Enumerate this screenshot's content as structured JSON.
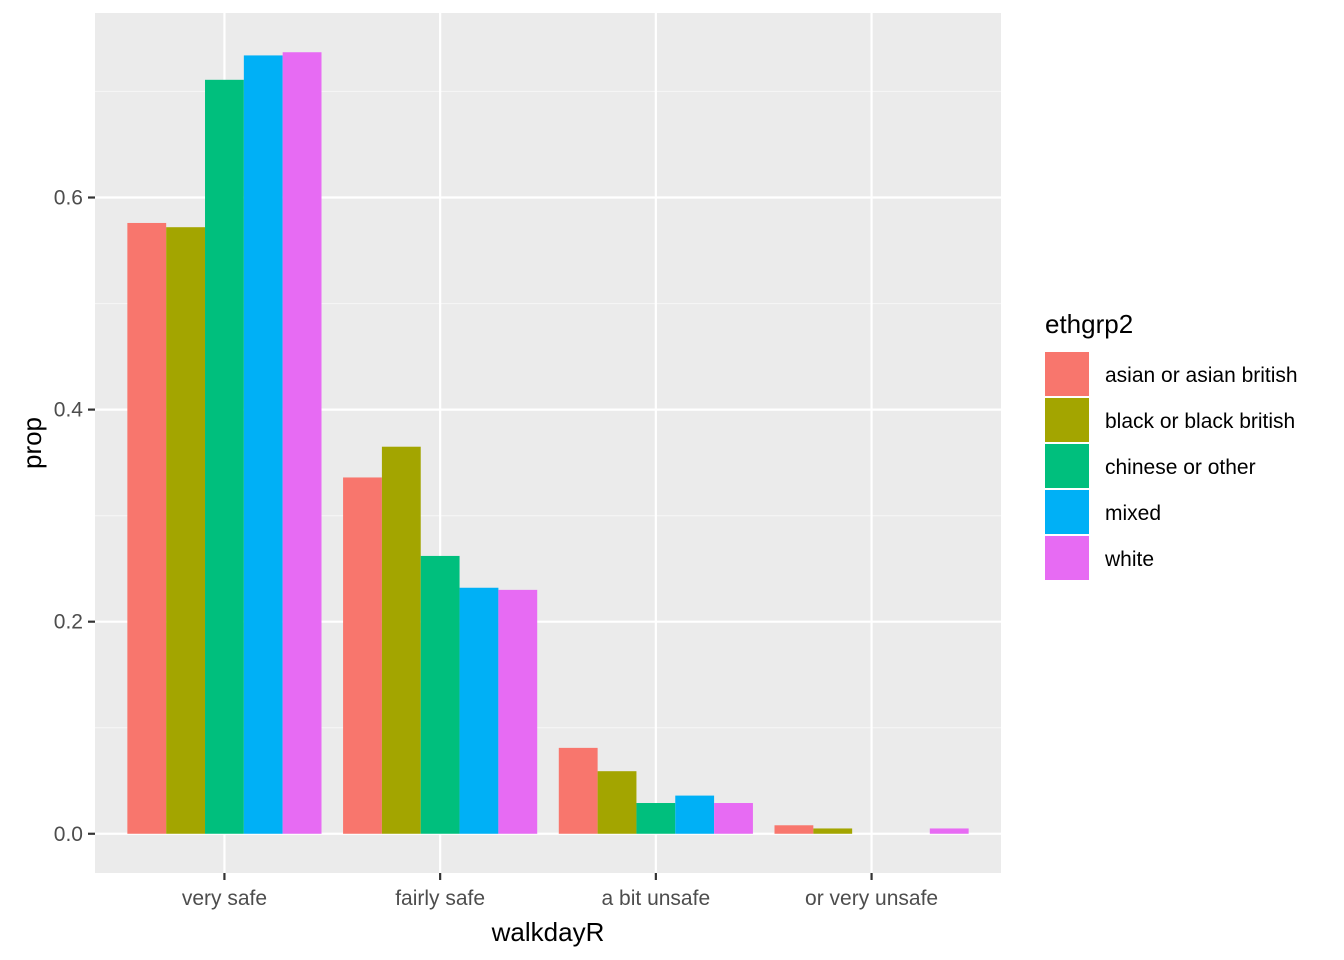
{
  "chart_data": {
    "type": "bar",
    "xlabel": "walkdayR",
    "ylabel": "prop",
    "categories": [
      "very safe",
      "fairly safe",
      "a bit unsafe",
      "or very unsafe"
    ],
    "ylim": [
      -0.037,
      0.774
    ],
    "yticks": [
      0.0,
      0.2,
      0.4,
      0.6
    ],
    "ytick_labels": [
      "0.0",
      "0.2",
      "0.4",
      "0.6"
    ],
    "grid": true,
    "legend": {
      "title": "ethgrp2",
      "position": "right"
    },
    "series": [
      {
        "name": "asian or asian british",
        "color": "#F8766D",
        "values": [
          0.576,
          0.336,
          0.081,
          0.008
        ]
      },
      {
        "name": "black or black british",
        "color": "#A3A500",
        "values": [
          0.572,
          0.365,
          0.059,
          0.005
        ]
      },
      {
        "name": "chinese or other",
        "color": "#00BF7D",
        "values": [
          0.711,
          0.262,
          0.029,
          0.0
        ]
      },
      {
        "name": "mixed",
        "color": "#00B0F6",
        "values": [
          0.734,
          0.232,
          0.036,
          0.0
        ]
      },
      {
        "name": "white",
        "color": "#E76BF3",
        "values": [
          0.737,
          0.23,
          0.029,
          0.005
        ]
      }
    ],
    "colors": {
      "panel_background": "#EBEBEB",
      "grid_major": "#FFFFFF",
      "grid_minor": "#F5F5F5",
      "tick_color": "#333333"
    }
  }
}
